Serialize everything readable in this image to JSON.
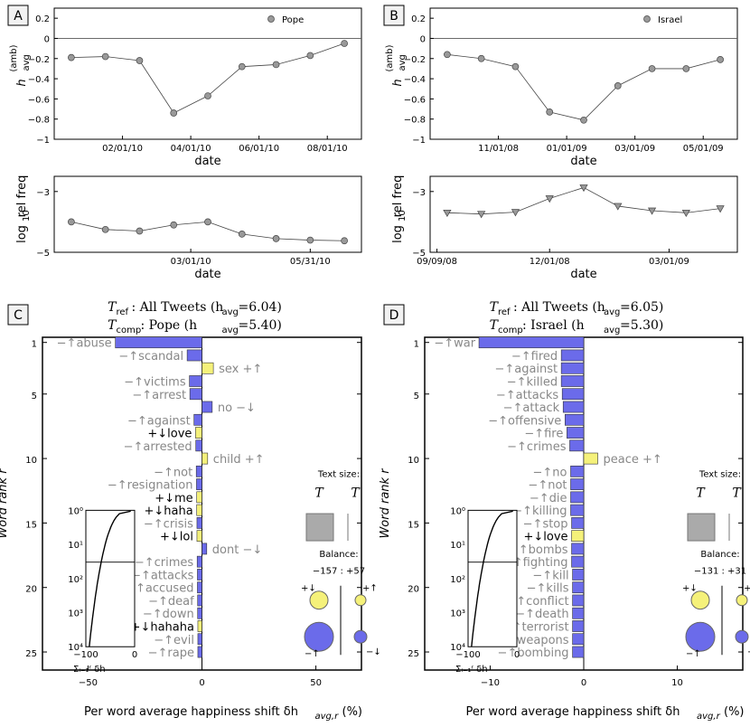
{
  "panels": [
    {
      "letter": "A"
    },
    {
      "letter": "B"
    },
    {
      "letter": "C"
    },
    {
      "letter": "D"
    }
  ],
  "chart_data": [
    {
      "id": "A_top",
      "type": "line",
      "legend": "Pope",
      "xlabel": "date",
      "ylabel_sym": "h",
      "ylabel_sub": "avg",
      "ylabel_sup": "(amb)",
      "ylim": [
        -1,
        0.3
      ],
      "yticks": [
        {
          "v": 0.2,
          "t": "0.2"
        },
        {
          "v": 0,
          "t": "0"
        },
        {
          "v": -0.2,
          "t": "−0.2"
        },
        {
          "v": -0.4,
          "t": "−0.4"
        },
        {
          "v": -0.6,
          "t": "−0.6"
        },
        {
          "v": -0.8,
          "t": "−0.8"
        },
        {
          "v": -1,
          "t": "−1"
        }
      ],
      "xticks": [
        {
          "i": 1.5,
          "t": "02/01/10"
        },
        {
          "i": 3.5,
          "t": "04/01/10"
        },
        {
          "i": 5.5,
          "t": "06/01/10"
        },
        {
          "i": 7.5,
          "t": "08/01/10"
        }
      ],
      "values": [
        -0.19,
        -0.18,
        -0.22,
        -0.74,
        -0.57,
        -0.28,
        -0.26,
        -0.17,
        -0.05
      ]
    },
    {
      "id": "B_top",
      "type": "line",
      "legend": "Israel",
      "xlabel": "date",
      "ylabel_sym": "h",
      "ylabel_sub": "avg",
      "ylabel_sup": "(amb)",
      "ylim": [
        -1,
        0.3
      ],
      "yticks": [
        {
          "v": 0.2,
          "t": "0.2"
        },
        {
          "v": 0,
          "t": "0"
        },
        {
          "v": -0.2,
          "t": "−0.2"
        },
        {
          "v": -0.4,
          "t": "−0.4"
        },
        {
          "v": -0.6,
          "t": "−0.6"
        },
        {
          "v": -0.8,
          "t": "−0.8"
        },
        {
          "v": -1,
          "t": "−1"
        }
      ],
      "xticks": [
        {
          "i": 1.5,
          "t": "11/01/08"
        },
        {
          "i": 3.5,
          "t": "01/01/09"
        },
        {
          "i": 5.5,
          "t": "03/01/09"
        },
        {
          "i": 7.5,
          "t": "05/01/09"
        }
      ],
      "values": [
        -0.16,
        -0.2,
        -0.28,
        -0.73,
        -0.81,
        -0.47,
        -0.3,
        -0.3,
        -0.21
      ]
    },
    {
      "id": "A_bot",
      "type": "line",
      "xlabel": "date",
      "ylabel": "rel freq",
      "ylabel_pre": "log",
      "ylim": [
        -5,
        -2.5
      ],
      "yticks": [
        {
          "v": -3,
          "t": "−3"
        },
        {
          "v": -5,
          "t": "−5"
        }
      ],
      "xticks": [
        {
          "i": 3.5,
          "t": "03/01/10"
        },
        {
          "i": 7,
          "t": "05/31/10"
        }
      ],
      "values": [
        -4.0,
        -4.25,
        -4.3,
        -4.1,
        -4.0,
        -4.4,
        -4.55,
        -4.6,
        -4.62
      ]
    },
    {
      "id": "B_bot",
      "type": "line",
      "xlabel": "date",
      "ylabel": "rel freq",
      "ylabel_pre": "log",
      "ylim": [
        -5,
        -2.5
      ],
      "yticks": [
        {
          "v": -3,
          "t": "−3"
        },
        {
          "v": -5,
          "t": "−5"
        }
      ],
      "xticks": [
        {
          "i": -0.3,
          "t": "09/09/08"
        },
        {
          "i": 3,
          "t": "12/01/08"
        },
        {
          "i": 6.5,
          "t": "03/01/09"
        }
      ],
      "values": [
        -3.7,
        -3.74,
        -3.68,
        -3.23,
        -2.87,
        -3.48,
        -3.63,
        -3.7,
        -3.56
      ]
    },
    {
      "id": "C_shift",
      "type": "bar",
      "t_ref": "All Tweets (h",
      "t_ref_avg": "6.04",
      "t_comp": "Pope (h",
      "t_comp_avg": "5.40",
      "xlabel": "Per word average happiness shift δh",
      "xlabel_sub": "avg,r",
      "xlabel_tail": " (%)",
      "ylabel": "Word rank r",
      "xlim": [
        -70,
        70
      ],
      "xticks": [
        {
          "v": -50,
          "t": "−50"
        },
        {
          "v": 0,
          "t": "0"
        },
        {
          "v": 50,
          "t": "50"
        }
      ],
      "yticks": [
        1,
        5,
        10,
        15,
        20,
        25
      ],
      "words": [
        {
          "w": "−↑abuse",
          "v": -38
        },
        {
          "w": "−↑scandal",
          "v": -6.5
        },
        {
          "w": "sex +↑",
          "v": 5
        },
        {
          "w": "−↑victims",
          "v": -5.5
        },
        {
          "w": "−↑arrest",
          "v": -5.3
        },
        {
          "w": "no −↓",
          "v": 4.5
        },
        {
          "w": "−↑against",
          "v": -3.5
        },
        {
          "w": "+↓love",
          "v": -2.8
        },
        {
          "w": "−↑arrested",
          "v": -2.7
        },
        {
          "w": "child +↑",
          "v": 2.5
        },
        {
          "w": "−↑not",
          "v": -2.5
        },
        {
          "w": "−↑resignation",
          "v": -2.4
        },
        {
          "w": "+↓me",
          "v": -2.3
        },
        {
          "w": "+↓haha",
          "v": -2.3
        },
        {
          "w": "−↑crisis",
          "v": -2.2
        },
        {
          "w": "+↓lol",
          "v": -2.2
        },
        {
          "w": "dont −↓",
          "v": 2.1
        },
        {
          "w": "−↑crimes",
          "v": -2.1
        },
        {
          "w": "−↑attacks",
          "v": -2.0
        },
        {
          "w": "−↑accused",
          "v": -2.0
        },
        {
          "w": "−↑deaf",
          "v": -1.9
        },
        {
          "w": "−↑down",
          "v": -1.9
        },
        {
          "w": "+↓hahaha",
          "v": -1.8
        },
        {
          "w": "−↑evil",
          "v": -1.8
        },
        {
          "w": "−↑rape",
          "v": -1.8
        }
      ],
      "inset": {
        "ylabels": [
          "10⁰",
          "10¹",
          "10²",
          "10³",
          "10⁴"
        ],
        "xlabels": [
          "−100",
          "0"
        ],
        "xlabel": "Σᵢ₌₁ʳ δh"
      },
      "text_size_title": "Text size:",
      "text_size_ref": "T",
      "text_size_comp": "T",
      "balance_title": "Balance:",
      "balance_neg": "−157",
      "balance_pos": "+57",
      "circ_plus_down": "+↓",
      "circ_plus_up": "+↑",
      "circ_minus_up": "−↑",
      "circ_minus_down": "−↓"
    },
    {
      "id": "D_shift",
      "type": "bar",
      "t_ref": "All Tweets (h",
      "t_ref_avg": "6.05",
      "t_comp": "Israel (h",
      "t_comp_avg": "5.30",
      "xlabel": "Per word average happiness shift δh",
      "xlabel_sub": "avg,r",
      "xlabel_tail": " (%)",
      "ylabel": "Word rank r",
      "xlim": [
        -17,
        17
      ],
      "xticks": [
        {
          "v": -10,
          "t": "−10"
        },
        {
          "v": 0,
          "t": "0"
        },
        {
          "v": 10,
          "t": "10"
        }
      ],
      "yticks": [
        1,
        5,
        10,
        15,
        20,
        25
      ],
      "words": [
        {
          "w": "−↑war",
          "v": -11.2
        },
        {
          "w": "−↑fired",
          "v": -2.4
        },
        {
          "w": "−↑against",
          "v": -2.4
        },
        {
          "w": "−↑killed",
          "v": -2.4
        },
        {
          "w": "−↑attacks",
          "v": -2.3
        },
        {
          "w": "−↑attack",
          "v": -2.2
        },
        {
          "w": "−↑offensive",
          "v": -2.0
        },
        {
          "w": "−↑fire",
          "v": -1.8
        },
        {
          "w": "−↑crimes",
          "v": -1.5
        },
        {
          "w": "peace +↑",
          "v": 1.5
        },
        {
          "w": "−↑no",
          "v": -1.4
        },
        {
          "w": "−↑not",
          "v": -1.4
        },
        {
          "w": "−↑die",
          "v": -1.4
        },
        {
          "w": "−↑killing",
          "v": -1.4
        },
        {
          "w": "−↑stop",
          "v": -1.3
        },
        {
          "w": "+↓love",
          "v": -1.3
        },
        {
          "w": "−↑bombs",
          "v": -1.3
        },
        {
          "w": "−↑fighting",
          "v": -1.3
        },
        {
          "w": "−↑kill",
          "v": -1.2
        },
        {
          "w": "−↑kills",
          "v": -1.2
        },
        {
          "w": "−↑conflict",
          "v": -1.2
        },
        {
          "w": "−↑death",
          "v": -1.2
        },
        {
          "w": "−↑terrorist",
          "v": -1.2
        },
        {
          "w": "−↑weapons",
          "v": -1.2
        },
        {
          "w": "−↑bombing",
          "v": -1.2
        }
      ],
      "inset": {
        "ylabels": [
          "10⁰",
          "10¹",
          "10²",
          "10³",
          "10⁴"
        ],
        "xlabels": [
          "−100",
          "0"
        ],
        "xlabel": "Σᵢ₌₁ʳ δh"
      },
      "text_size_title": "Text size:",
      "text_size_ref": "T",
      "text_size_comp": "T",
      "balance_title": "Balance:",
      "balance_neg": "−131",
      "balance_pos": "+31",
      "circ_plus_down": "+↓",
      "circ_plus_up": "+↑",
      "circ_minus_up": "−↑",
      "circ_minus_down": "−↓"
    }
  ]
}
